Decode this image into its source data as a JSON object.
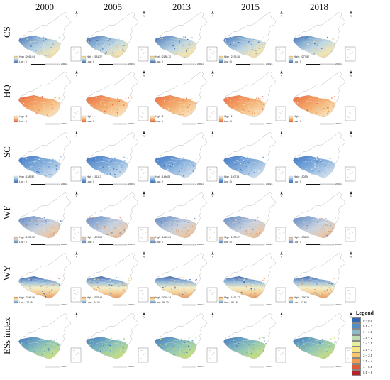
{
  "years": [
    "2000",
    "2005",
    "2013",
    "2015",
    "2018"
  ],
  "rows": [
    {
      "label": "CS",
      "palette": [
        "#3d64b0",
        "#79a3cd",
        "#b9d3e2",
        "#efe3b3",
        "#e9c483"
      ],
      "high": [
        "High : 2015.04",
        "High : 2151.27",
        "High : 2185.12",
        "High : 2199.26",
        "High : 2277.82"
      ],
      "low": [
        "Low : 0",
        "Low : 0",
        "Low : 0",
        "Low : 0",
        "Low : 0"
      ]
    },
    {
      "label": "HQ",
      "palette": [
        "#e5613e",
        "#ef8a4f",
        "#f3b171",
        "#f8d5a5",
        "#f5e9d2"
      ],
      "high": [
        "High : 1",
        "High : 1",
        "High : 1",
        "High : 1",
        "High : 1"
      ],
      "low": [
        "Low : 0",
        "Low : 0",
        "Low : 0",
        "Low : 0",
        "Low : 0"
      ]
    },
    {
      "label": "SC",
      "palette": [
        "#3a6fbe",
        "#5a8fcf",
        "#86b0db",
        "#bcd2e8",
        "#e4ecf4"
      ],
      "high": [
        "High : 138932",
        "High : 151117",
        "High : 144024",
        "High : 150719",
        "High : 150326"
      ],
      "low": [
        "Low : 0",
        "Low : 0",
        "Low : 0",
        "Low : 0",
        "Low : 0"
      ]
    },
    {
      "label": "WF",
      "palette": [
        "#5d82bf",
        "#8aa7cf",
        "#c6cfdc",
        "#e7c7a7",
        "#d9946b"
      ],
      "high": [
        "High : 1399.32",
        "High : 1270.23",
        "High : 1423.61",
        "High : 1203.07",
        "High : 1332.29"
      ],
      "low": [
        "Low : 0",
        "Low : 0",
        "Low : 0",
        "Low : 0",
        "Low : 0"
      ]
    },
    {
      "label": "WY",
      "palette": [
        "#3b63ad",
        "#8fb6d8",
        "#f3efc6",
        "#f2c78b",
        "#e48b57"
      ],
      "high": [
        "High : 2343.06",
        "High : 2379.48",
        "High : 2068.24",
        "High : 1671.17",
        "High : 1790.15"
      ],
      "low": [
        "Low : -74.65",
        "Low : -74.05",
        "Low : -96.73",
        "Low : -82.18",
        "Low : -67.95"
      ]
    },
    {
      "label": "ESs index",
      "palette": [
        "#3f6fb5",
        "#5f9bbf",
        "#8cc3b2",
        "#b8d98b",
        "#d2d64f"
      ],
      "high": [
        "",
        "",
        "",
        "",
        ""
      ],
      "low": [
        "",
        "",
        "",
        "",
        ""
      ]
    }
  ],
  "legend": {
    "title": "Legend",
    "items": [
      {
        "label": "0 – 0.5",
        "color": "#2f67b1"
      },
      {
        "label": "0.5 – 1",
        "color": "#4f8fc4"
      },
      {
        "label": "1 – 1.5",
        "color": "#8ab9c9"
      },
      {
        "label": "1.5 – 2",
        "color": "#bddcb0"
      },
      {
        "label": "2 – 2.5",
        "color": "#e5ee9e"
      },
      {
        "label": "2.5 – 3",
        "color": "#f5e585"
      },
      {
        "label": "3 – 3.5",
        "color": "#f8c56a"
      },
      {
        "label": "3.5 – 4",
        "color": "#f29a50"
      },
      {
        "label": "4 – 5.5",
        "color": "#df5a38"
      },
      {
        "label": "5.5 – 6",
        "color": "#b5222a"
      }
    ]
  },
  "north_symbol": "N",
  "scale_label": "2000km"
}
